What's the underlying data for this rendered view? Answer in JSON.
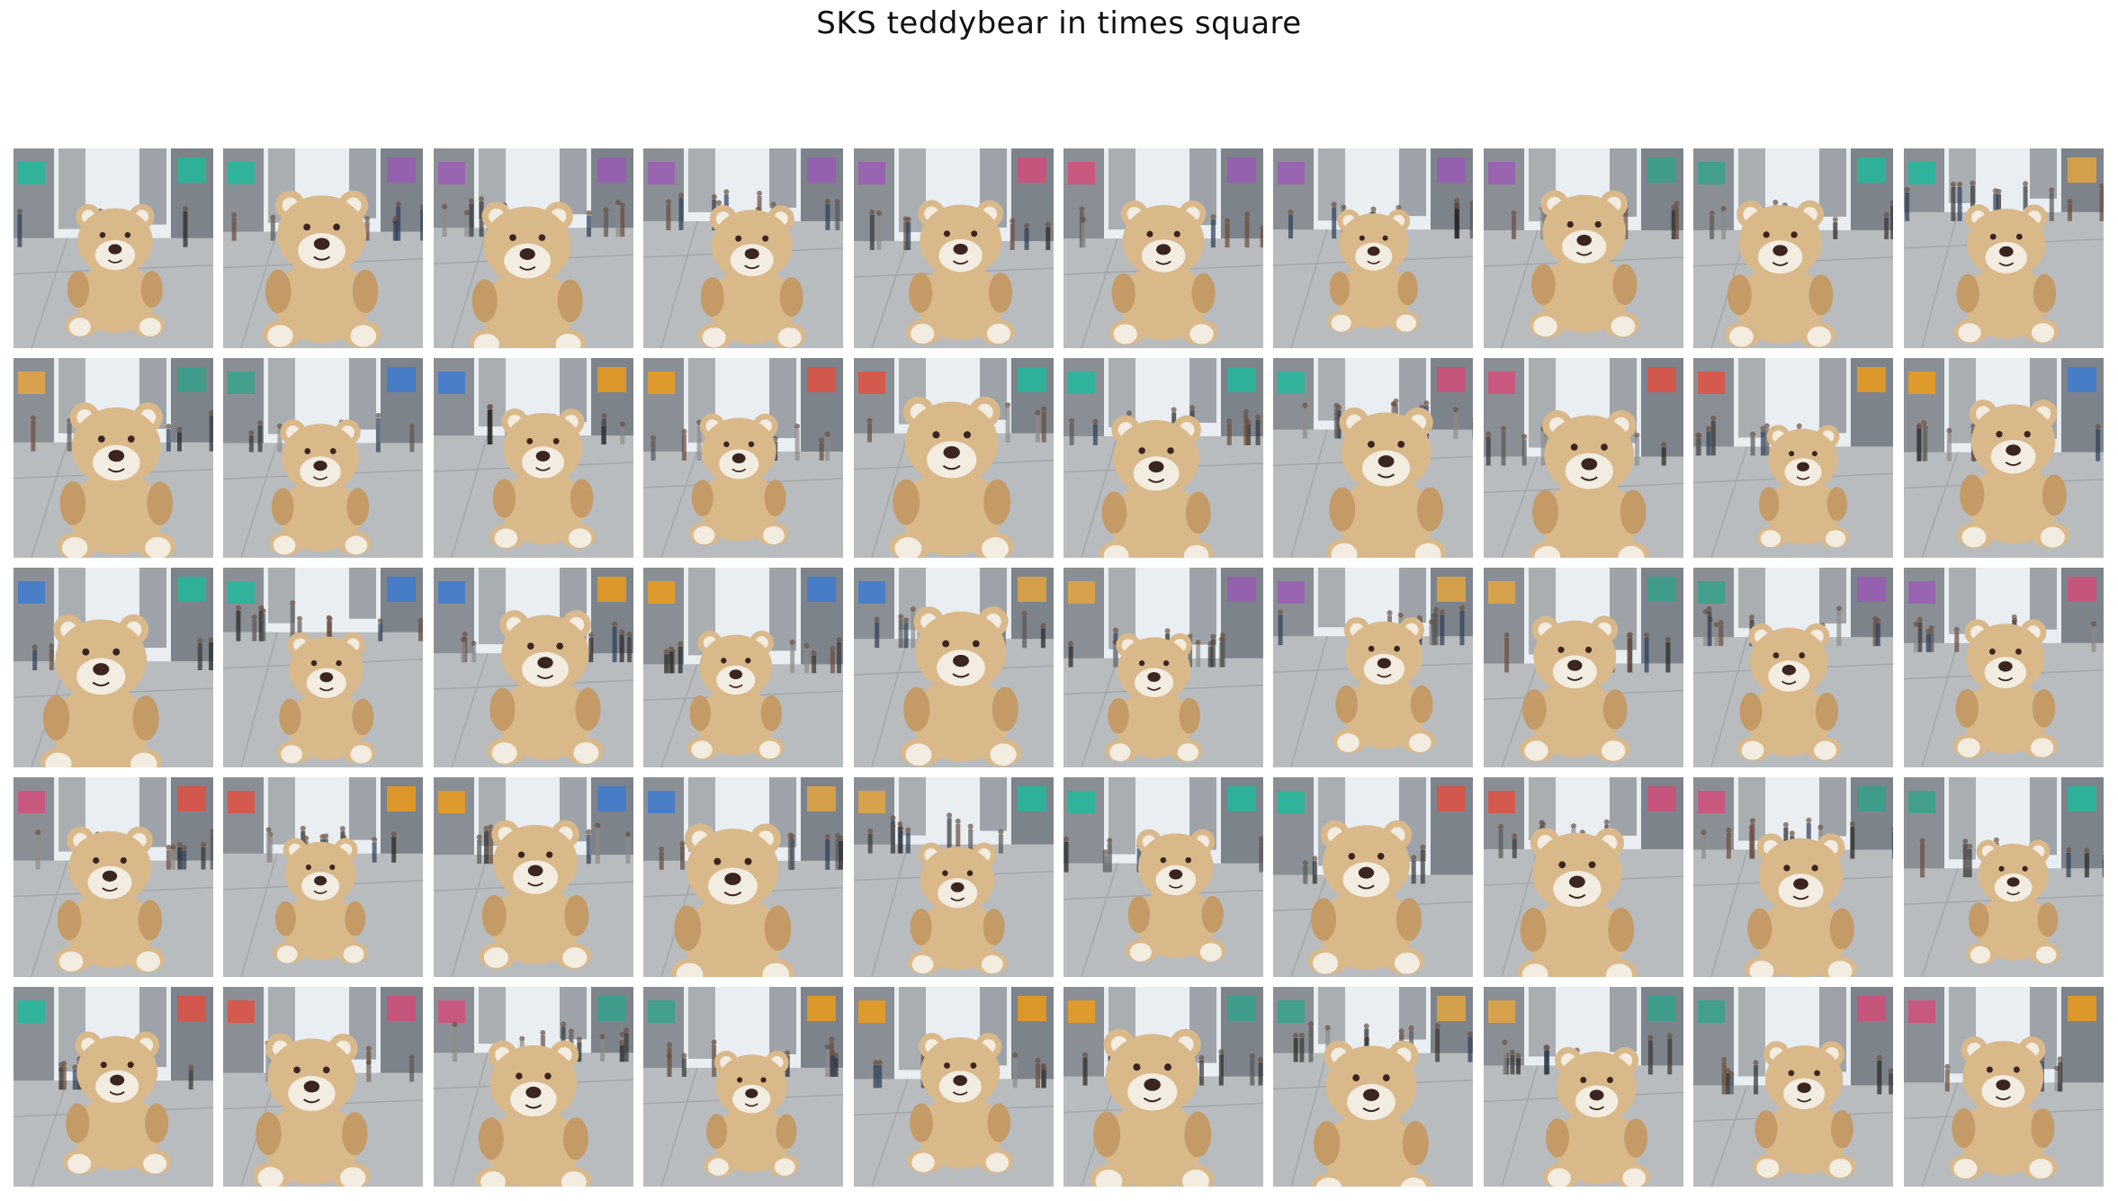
{
  "figure": {
    "title": "SKS teddybear in times square"
  },
  "grid": {
    "rows": 5,
    "cols": 10,
    "tiles": [
      {
        "id": 1
      },
      {
        "id": 2
      },
      {
        "id": 3
      },
      {
        "id": 4
      },
      {
        "id": 5
      },
      {
        "id": 6
      },
      {
        "id": 7
      },
      {
        "id": 8
      },
      {
        "id": 9
      },
      {
        "id": 10
      },
      {
        "id": 11
      },
      {
        "id": 12
      },
      {
        "id": 13
      },
      {
        "id": 14
      },
      {
        "id": 15
      },
      {
        "id": 16
      },
      {
        "id": 17
      },
      {
        "id": 18
      },
      {
        "id": 19
      },
      {
        "id": 20
      },
      {
        "id": 21
      },
      {
        "id": 22
      },
      {
        "id": 23
      },
      {
        "id": 24
      },
      {
        "id": 25
      },
      {
        "id": 26
      },
      {
        "id": 27
      },
      {
        "id": 28
      },
      {
        "id": 29
      },
      {
        "id": 30
      },
      {
        "id": 31
      },
      {
        "id": 32
      },
      {
        "id": 33
      },
      {
        "id": 34
      },
      {
        "id": 35
      },
      {
        "id": 36
      },
      {
        "id": 37
      },
      {
        "id": 38
      },
      {
        "id": 39
      },
      {
        "id": 40
      },
      {
        "id": 41
      },
      {
        "id": 42
      },
      {
        "id": 43
      },
      {
        "id": 44
      },
      {
        "id": 45
      },
      {
        "id": 46
      },
      {
        "id": 47
      },
      {
        "id": 48
      },
      {
        "id": 49
      },
      {
        "id": 50
      }
    ]
  },
  "colors": {
    "background": "#ffffff",
    "bear_fur": "#d9b88a",
    "bear_fur_dark": "#c49a66",
    "muzzle": "#f3ece0",
    "nose": "#3a2520",
    "pavement": "#b8bcbe",
    "sky": "#e8eef2"
  }
}
